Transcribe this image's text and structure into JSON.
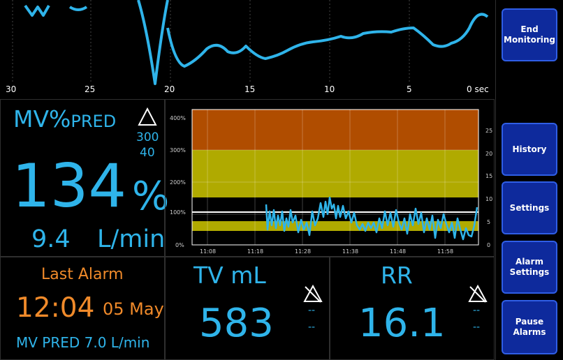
{
  "waveform": {
    "axis_ticks": [
      "30",
      "25",
      "20",
      "15",
      "10",
      "5",
      "0 sec"
    ]
  },
  "buttons": {
    "end_monitoring": "End\nMonitoring",
    "history": "History",
    "settings": "Settings",
    "alarm_settings": "Alarm\nSettings",
    "pause_alarms": "Pause\nAlarms"
  },
  "mv_panel": {
    "title_main": "MV%",
    "title_sub": "PRED",
    "alarm_high": "300",
    "alarm_low": "40",
    "value": "134",
    "unit": "%",
    "flow_value": "9.4",
    "flow_unit": "L/min"
  },
  "trend_chart": {
    "y_left_ticks": [
      "400%",
      "300%",
      "200%",
      "100%",
      "0%"
    ],
    "y_right_ticks": [
      "25",
      "20",
      "15",
      "10",
      "5",
      "0"
    ],
    "x_ticks": [
      "11:08",
      "11:18",
      "11:28",
      "11:38",
      "11:48",
      "11:58"
    ],
    "colors": {
      "high_band": "#b04d00",
      "warn_band": "#b0aa00",
      "ok_band": "#000000",
      "trend_line": "#2fb4ea"
    }
  },
  "last_alarm": {
    "title": "Last Alarm",
    "time": "12:04",
    "date": "05 May",
    "detail": "MV PRED 7.0 L/min"
  },
  "tv_panel": {
    "title": "TV mL",
    "value": "583",
    "alarm_high": "--",
    "alarm_low": "--"
  },
  "rr_panel": {
    "title": "RR",
    "value": "16.1",
    "alarm_high": "--",
    "alarm_low": "--"
  }
}
